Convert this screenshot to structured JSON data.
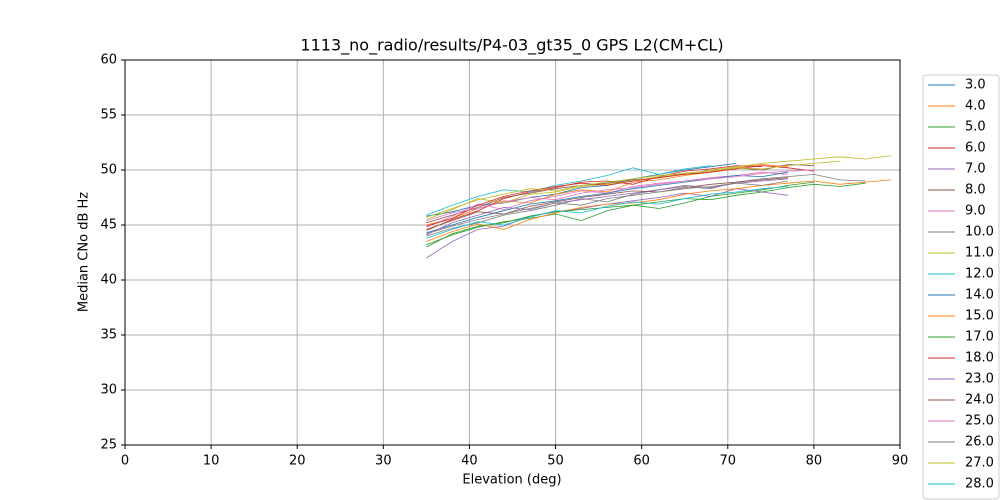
{
  "chart_data": {
    "type": "line",
    "title": "1113_no_radio/results/P4-03_gt35_0 GPS L2(CM+CL)",
    "xlabel": "Elevation (deg)",
    "ylabel": "Median CNo dB Hz",
    "xlim": [
      0,
      90
    ],
    "ylim": [
      25,
      60
    ],
    "xticks": [
      0,
      10,
      20,
      30,
      40,
      50,
      60,
      70,
      80,
      90
    ],
    "yticks": [
      25,
      30,
      35,
      40,
      45,
      50,
      55,
      60
    ],
    "grid": true,
    "legend": "right",
    "x": [
      35,
      38,
      41,
      44,
      47,
      50,
      53,
      56,
      59,
      62,
      65,
      68,
      71,
      74,
      77,
      80,
      83,
      86,
      89
    ],
    "series": [
      {
        "name": "3.0",
        "color": "#1f77b4",
        "values": [
          45.8,
          46.2,
          46.8,
          47.0,
          47.5,
          47.8,
          48.4,
          48.6,
          49.2,
          49.6,
          50.0,
          50.3,
          50.6,
          null,
          null,
          null,
          null,
          null,
          null
        ]
      },
      {
        "name": "4.0",
        "color": "#ff7f0e",
        "values": [
          45.0,
          45.6,
          46.5,
          47.2,
          47.0,
          47.8,
          48.2,
          48.0,
          48.9,
          49.1,
          49.5,
          49.8,
          50.2,
          50.5,
          50.3,
          null,
          null,
          null,
          null
        ]
      },
      {
        "name": "5.0",
        "color": "#2ca02c",
        "values": [
          43.2,
          44.1,
          44.8,
          45.3,
          45.6,
          46.0,
          45.4,
          46.3,
          46.8,
          46.5,
          47.0,
          47.6,
          47.9,
          48.2,
          48.6,
          48.9,
          null,
          null,
          null
        ]
      },
      {
        "name": "6.0",
        "color": "#d62728",
        "values": [
          44.5,
          45.5,
          46.3,
          47.4,
          48.0,
          48.4,
          48.9,
          49.0,
          48.7,
          49.4,
          49.9,
          50.1,
          50.4,
          50.3,
          null,
          null,
          null,
          null,
          null
        ]
      },
      {
        "name": "7.0",
        "color": "#9467bd",
        "values": [
          42.0,
          43.5,
          44.6,
          44.9,
          45.8,
          46.2,
          46.5,
          46.9,
          47.2,
          47.5,
          47.9,
          47.6,
          48.3,
          48.0,
          47.7,
          null,
          null,
          null,
          null
        ]
      },
      {
        "name": "8.0",
        "color": "#8c564b",
        "values": [
          45.2,
          45.9,
          46.6,
          47.5,
          47.9,
          48.3,
          48.6,
          48.8,
          49.1,
          49.3,
          49.7,
          49.9,
          50.2,
          50.0,
          50.5,
          50.4,
          null,
          null,
          null
        ]
      },
      {
        "name": "9.0",
        "color": "#e377c2",
        "values": [
          44.8,
          45.8,
          46.9,
          46.4,
          47.2,
          47.6,
          48.1,
          47.9,
          48.5,
          48.8,
          49.0,
          49.3,
          49.5,
          49.8,
          49.6,
          null,
          null,
          null,
          null
        ]
      },
      {
        "name": "10.0",
        "color": "#7f7f7f",
        "values": [
          44.0,
          44.7,
          45.2,
          45.9,
          46.3,
          46.8,
          47.4,
          47.1,
          47.8,
          48.2,
          48.5,
          48.3,
          48.9,
          49.2,
          49.4,
          49.6,
          49.1,
          49.0,
          null
        ]
      },
      {
        "name": "11.0",
        "color": "#bcbd22",
        "values": [
          45.5,
          46.4,
          47.4,
          47.0,
          47.8,
          48.0,
          48.5,
          48.7,
          49.0,
          49.4,
          49.6,
          50.0,
          50.3,
          50.6,
          50.8,
          51.0,
          51.2,
          51.0,
          51.3
        ]
      },
      {
        "name": "12.0",
        "color": "#17becf",
        "values": [
          45.9,
          46.8,
          47.6,
          48.2,
          48.0,
          48.6,
          49.0,
          49.5,
          50.2,
          49.6,
          50.1,
          50.4,
          null,
          null,
          null,
          null,
          null,
          null,
          null
        ]
      },
      {
        "name": "14.0",
        "color": "#1f77b4",
        "values": [
          44.3,
          45.0,
          45.7,
          46.3,
          46.9,
          47.2,
          47.6,
          47.9,
          48.3,
          48.6,
          48.9,
          49.2,
          49.5,
          49.4,
          49.8,
          null,
          null,
          null,
          null
        ]
      },
      {
        "name": "15.0",
        "color": "#ff7f0e",
        "values": [
          43.5,
          44.4,
          45.1,
          44.6,
          45.5,
          46.1,
          46.6,
          46.9,
          47.0,
          47.3,
          47.8,
          48.1,
          48.3,
          48.6,
          48.8,
          49.0,
          48.7,
          48.9,
          49.1
        ]
      },
      {
        "name": "17.0",
        "color": "#2ca02c",
        "values": [
          43.0,
          44.2,
          44.9,
          45.2,
          45.8,
          46.2,
          46.4,
          46.6,
          46.8,
          47.1,
          47.4,
          47.3,
          47.7,
          48.0,
          48.4,
          48.7,
          48.5,
          48.8,
          null
        ]
      },
      {
        "name": "18.0",
        "color": "#d62728",
        "values": [
          44.9,
          45.6,
          46.8,
          47.6,
          48.1,
          48.5,
          48.8,
          48.6,
          49.0,
          49.3,
          49.6,
          49.8,
          50.1,
          50.4,
          50.2,
          49.9,
          null,
          null,
          null
        ]
      },
      {
        "name": "23.0",
        "color": "#9467bd",
        "values": [
          44.1,
          45.2,
          45.9,
          46.6,
          46.4,
          47.0,
          47.3,
          47.6,
          47.9,
          48.2,
          48.6,
          48.4,
          48.8,
          49.0,
          49.2,
          null,
          null,
          null,
          null
        ]
      },
      {
        "name": "24.0",
        "color": "#8c564b",
        "values": [
          44.6,
          45.4,
          46.2,
          46.0,
          46.7,
          47.1,
          47.5,
          47.8,
          48.1,
          48.0,
          48.4,
          48.7,
          48.9,
          49.1,
          49.3,
          null,
          null,
          null,
          null
        ]
      },
      {
        "name": "25.0",
        "color": "#e377c2",
        "values": [
          45.4,
          46.1,
          46.5,
          47.1,
          47.5,
          47.3,
          47.9,
          48.2,
          48.4,
          48.7,
          49.0,
          49.2,
          49.4,
          49.7,
          49.9,
          50.0,
          null,
          null,
          null
        ]
      },
      {
        "name": "26.0",
        "color": "#7f7f7f",
        "values": [
          44.2,
          44.9,
          45.5,
          46.0,
          46.5,
          47.0,
          46.8,
          47.4,
          47.7,
          48.0,
          48.3,
          48.5,
          48.8,
          48.6,
          49.0,
          null,
          null,
          null,
          null
        ]
      },
      {
        "name": "27.0",
        "color": "#bcbd22",
        "values": [
          45.7,
          46.5,
          47.3,
          47.8,
          48.3,
          48.1,
          48.6,
          48.9,
          49.2,
          49.5,
          49.7,
          49.9,
          50.2,
          50.1,
          50.4,
          50.6,
          50.8,
          null,
          null
        ]
      },
      {
        "name": "28.0",
        "color": "#17becf",
        "values": [
          43.8,
          44.6,
          45.3,
          45.0,
          45.7,
          46.3,
          46.1,
          46.7,
          47.1,
          46.9,
          47.4,
          47.8,
          48.0,
          48.3,
          48.5,
          null,
          null,
          null,
          null
        ]
      }
    ]
  }
}
